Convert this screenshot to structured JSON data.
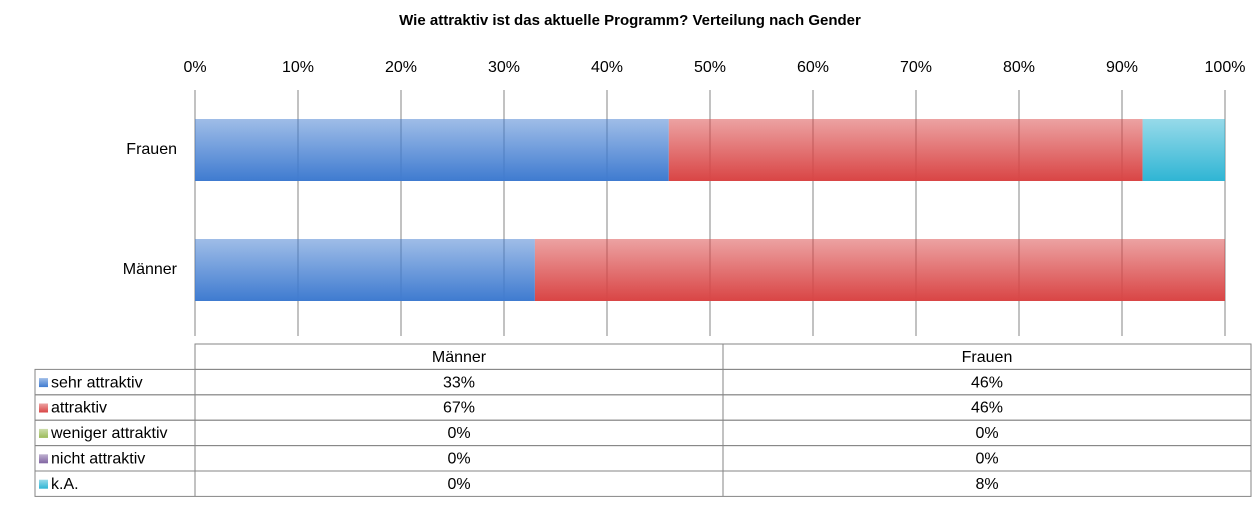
{
  "chart_data": {
    "type": "bar",
    "orientation": "horizontal",
    "stacked": true,
    "title": "Wie attraktiv ist das aktuelle Programm? Verteilung nach Gender",
    "categories": [
      "Männer",
      "Frauen"
    ],
    "series": [
      {
        "name": "sehr attraktiv",
        "color": "#3f7bd0",
        "values": [
          33,
          46
        ],
        "value_labels": [
          "33%",
          "46%"
        ]
      },
      {
        "name": "attraktiv",
        "color": "#d94545",
        "values": [
          67,
          46
        ],
        "value_labels": [
          "67%",
          "46%"
        ]
      },
      {
        "name": "weniger attraktiv",
        "color": "#9bbb59",
        "values": [
          0,
          0
        ],
        "value_labels": [
          "0%",
          "0%"
        ]
      },
      {
        "name": "nicht attraktiv",
        "color": "#8064a2",
        "values": [
          0,
          0
        ],
        "value_labels": [
          "0%",
          "0%"
        ]
      },
      {
        "name": "k.A.",
        "color": "#2fb5d4",
        "values": [
          0,
          8
        ],
        "value_labels": [
          "0%",
          "8%"
        ]
      }
    ],
    "xlim": [
      0,
      100
    ],
    "xticks": [
      {
        "value": 0,
        "label": "0%"
      },
      {
        "value": 10,
        "label": "10%"
      },
      {
        "value": 20,
        "label": "20%"
      },
      {
        "value": 30,
        "label": "30%"
      },
      {
        "value": 40,
        "label": "40%"
      },
      {
        "value": 50,
        "label": "50%"
      },
      {
        "value": 60,
        "label": "60%"
      },
      {
        "value": 70,
        "label": "70%"
      },
      {
        "value": 80,
        "label": "80%"
      },
      {
        "value": 90,
        "label": "90%"
      },
      {
        "value": 100,
        "label": "100%"
      }
    ],
    "grid": true,
    "legend": "table"
  }
}
